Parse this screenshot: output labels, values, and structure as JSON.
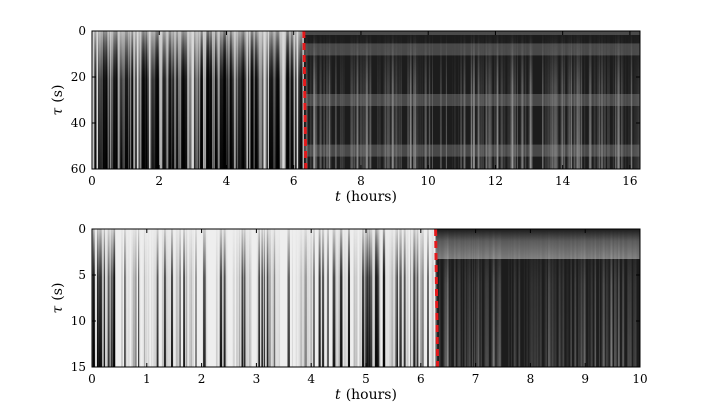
{
  "chart_data": [
    {
      "type": "heatmap",
      "xlabel_var": "t",
      "xlabel_unit": "(hours)",
      "ylabel_var": "τ",
      "ylabel_unit": "(s)",
      "xlim": [
        0,
        16.3
      ],
      "ylim": [
        60,
        0
      ],
      "x_ticks": [
        0,
        2,
        4,
        6,
        8,
        10,
        12,
        14,
        16
      ],
      "y_ticks": [
        0,
        20,
        40,
        60
      ],
      "changepoint_t": 6.3,
      "changepoint_style": "red dashed line",
      "colormap": "grayscale",
      "before_change": "high variance vertical streaks, mixed light and dark",
      "after_change": "predominantly dark with lighter horizontal bands near τ≈8, 30, 52"
    },
    {
      "type": "heatmap",
      "xlabel_var": "t",
      "xlabel_unit": "(hours)",
      "ylabel_var": "τ",
      "ylabel_unit": "(s)",
      "xlim": [
        0,
        10
      ],
      "ylim": [
        15,
        0
      ],
      "x_ticks": [
        0,
        1,
        2,
        3,
        4,
        5,
        6,
        7,
        8,
        9,
        10
      ],
      "y_ticks": [
        0,
        5,
        10,
        15
      ],
      "changepoint_t": 6.27,
      "changepoint_style": "red dashed line",
      "colormap": "grayscale",
      "before_change": "mostly light gray with dark vertical streaks",
      "after_change": "predominantly dark"
    }
  ],
  "colors": {
    "changepoint": "#e31a1c",
    "frame": "#000000"
  }
}
